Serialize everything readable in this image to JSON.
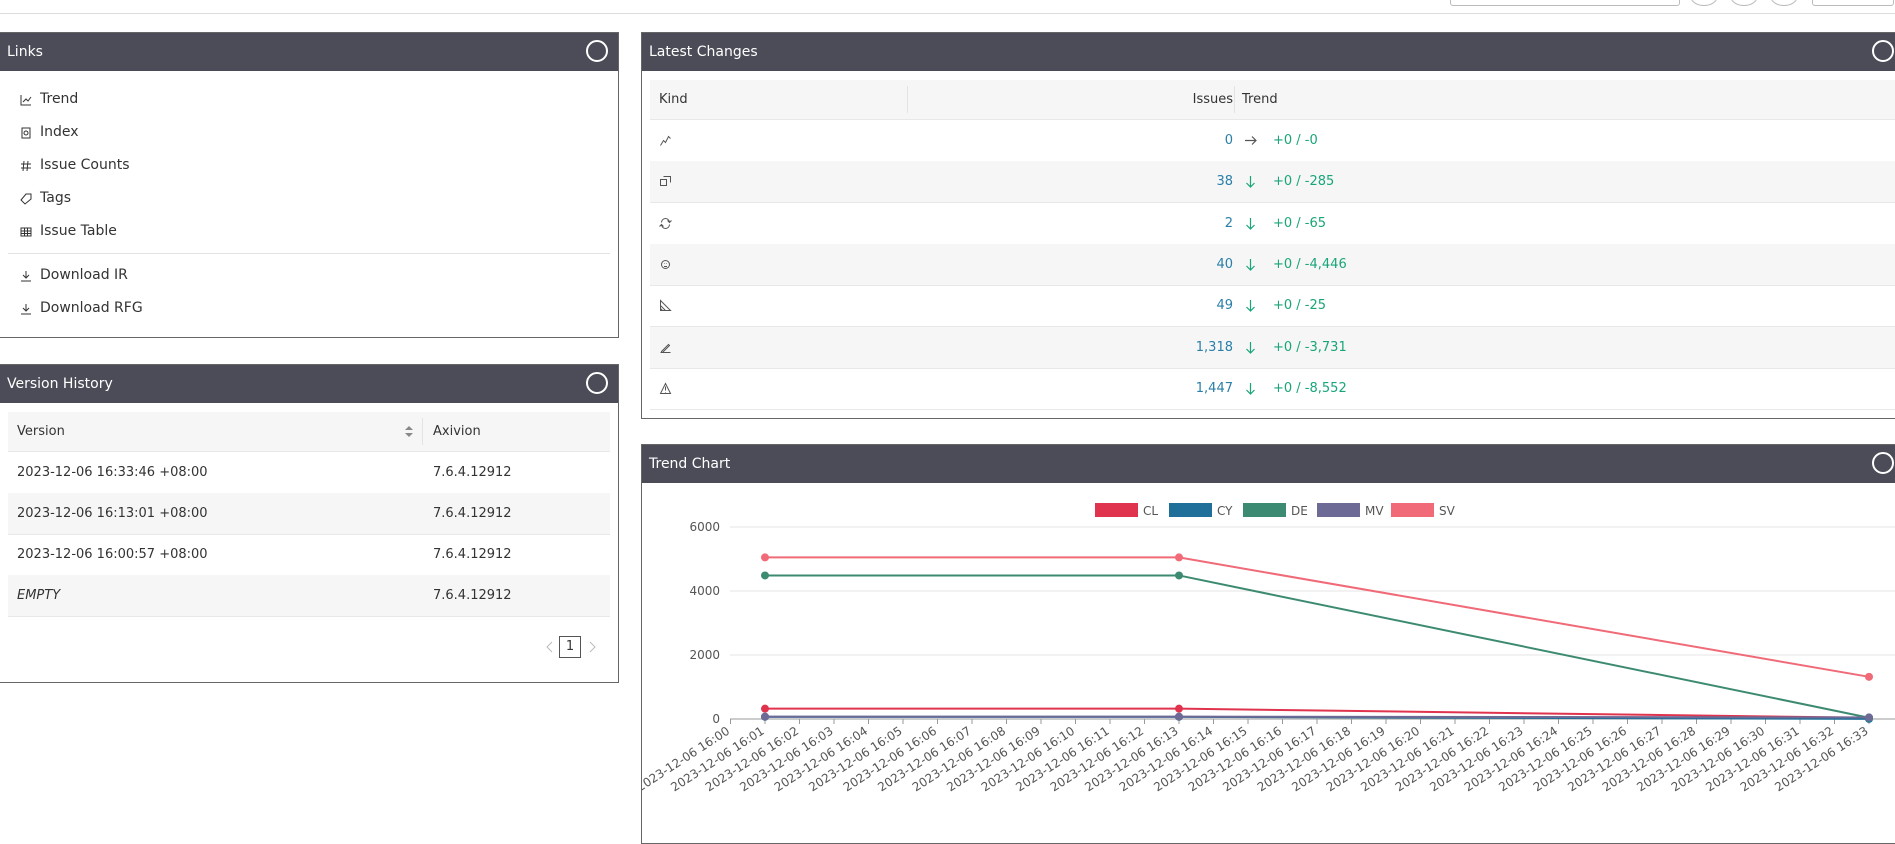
{
  "links": {
    "title": "Links",
    "items": [
      "Trend",
      "Index",
      "Issue Counts",
      "Tags",
      "Issue Table"
    ],
    "downloads": [
      "Download IR",
      "Download RFG"
    ]
  },
  "version_history": {
    "title": "Version History",
    "columns": [
      "Version",
      "Axivion"
    ],
    "rows": [
      [
        "2023-12-06 16:33:46 +08:00",
        "7.6.4.12912"
      ],
      [
        "2023-12-06 16:13:01 +08:00",
        "7.6.4.12912"
      ],
      [
        "2023-12-06 16:00:57 +08:00",
        "7.6.4.12912"
      ],
      [
        "EMPTY",
        "7.6.4.12912"
      ]
    ],
    "page": 1
  },
  "latest_changes": {
    "title": "Latest Changes",
    "columns": [
      "Kind",
      "Issues",
      "Trend"
    ],
    "rows": [
      {
        "issues": 0,
        "trend": "+0 / -0"
      },
      {
        "issues": 38,
        "trend": "+0 / -285"
      },
      {
        "issues": 2,
        "trend": "+0 / -65"
      },
      {
        "issues": 40,
        "trend": "+0 / -4,446"
      },
      {
        "issues": 49,
        "trend": "+0 / -25"
      },
      {
        "issues": "1,318",
        "trend": "+0 / -3,731"
      },
      {
        "issues": "1,447",
        "trend": "+0 / -8,552"
      }
    ]
  },
  "chart_data": {
    "type": "line",
    "title": "Trend Chart",
    "x": [
      "2023-12-06 16:01",
      "2023-12-06 16:13",
      "2023-12-06 16:33"
    ],
    "xticks": [
      "2023-12-06 16:00",
      "2023-12-06 16:01",
      "2023-12-06 16:02",
      "2023-12-06 16:03",
      "2023-12-06 16:04",
      "2023-12-06 16:05",
      "2023-12-06 16:06",
      "2023-12-06 16:07",
      "2023-12-06 16:08",
      "2023-12-06 16:09",
      "2023-12-06 16:10",
      "2023-12-06 16:11",
      "2023-12-06 16:12",
      "2023-12-06 16:13",
      "2023-12-06 16:14",
      "2023-12-06 16:15",
      "2023-12-06 16:16",
      "2023-12-06 16:17",
      "2023-12-06 16:18",
      "2023-12-06 16:19",
      "2023-12-06 16:20",
      "2023-12-06 16:21",
      "2023-12-06 16:22",
      "2023-12-06 16:23",
      "2023-12-06 16:24",
      "2023-12-06 16:25",
      "2023-12-06 16:26",
      "2023-12-06 16:27",
      "2023-12-06 16:28",
      "2023-12-06 16:29",
      "2023-12-06 16:30",
      "2023-12-06 16:31",
      "2023-12-06 16:32",
      "2023-12-06 16:33"
    ],
    "series": [
      {
        "name": "CL",
        "color": "#e0334e",
        "values": [
          323,
          323,
          38
        ]
      },
      {
        "name": "CY",
        "color": "#1f6f9a",
        "values": [
          67,
          67,
          2
        ]
      },
      {
        "name": "DE",
        "color": "#3d8a72",
        "values": [
          4486,
          4486,
          40
        ]
      },
      {
        "name": "MV",
        "color": "#6e6a96",
        "values": [
          74,
          74,
          49
        ]
      },
      {
        "name": "SV",
        "color": "#f06a78",
        "values": [
          5049,
          5049,
          1318
        ]
      }
    ],
    "ylim": [
      0,
      6000
    ],
    "yticks": [
      0,
      2000,
      4000,
      6000
    ],
    "grid": true
  }
}
